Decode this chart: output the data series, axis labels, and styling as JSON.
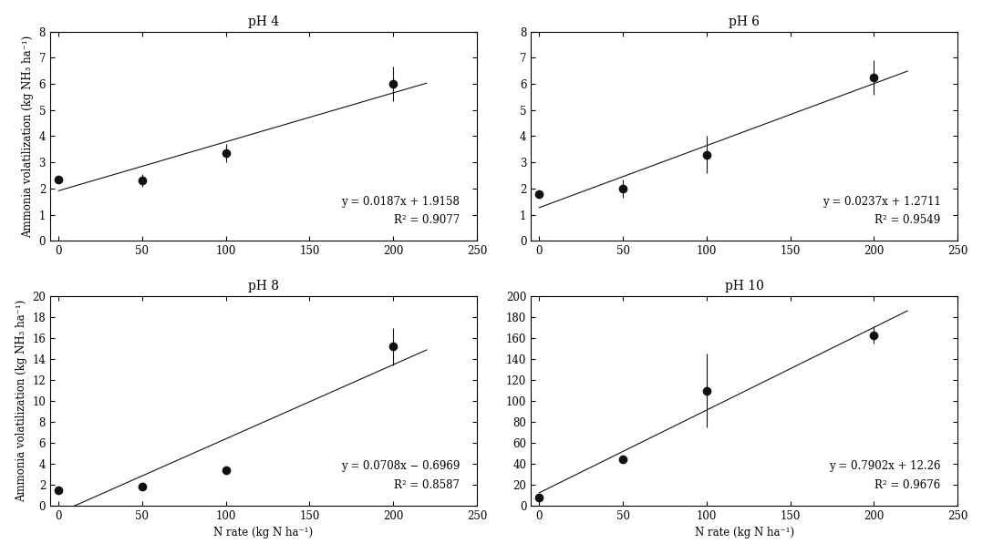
{
  "subplots": [
    {
      "title": "pH 4",
      "x": [
        0,
        50,
        100,
        200
      ],
      "y": [
        2.35,
        2.3,
        3.35,
        6.0
      ],
      "yerr": [
        0.12,
        0.25,
        0.35,
        0.65
      ],
      "slope": 0.0187,
      "intercept": 1.9158,
      "r2": 0.9077,
      "eq_text": "y = 0.0187x + 1.9158",
      "r2_text": "R² = 0.9077",
      "ylabel": "Ammonia volatilization (kg NH₃ ha⁻¹)",
      "xlabel": "",
      "ylim": [
        0,
        8
      ],
      "yticks": [
        0,
        1,
        2,
        3,
        4,
        5,
        6,
        7,
        8
      ],
      "xlim": [
        -5,
        250
      ],
      "xticks": [
        0,
        50,
        100,
        150,
        200,
        250
      ],
      "row": 0,
      "col": 0
    },
    {
      "title": "pH 6",
      "x": [
        0,
        50,
        100,
        200
      ],
      "y": [
        1.8,
        2.0,
        3.3,
        6.25
      ],
      "yerr": [
        0.1,
        0.35,
        0.7,
        0.65
      ],
      "slope": 0.0237,
      "intercept": 1.2711,
      "r2": 0.9549,
      "eq_text": "y = 0.0237x + 1.2711",
      "r2_text": "R² = 0.9549",
      "ylabel": "",
      "xlabel": "",
      "ylim": [
        0,
        8
      ],
      "yticks": [
        0,
        1,
        2,
        3,
        4,
        5,
        6,
        7,
        8
      ],
      "xlim": [
        -5,
        250
      ],
      "xticks": [
        0,
        50,
        100,
        150,
        200,
        250
      ],
      "row": 0,
      "col": 1
    },
    {
      "title": "pH 8",
      "x": [
        0,
        50,
        100,
        200
      ],
      "y": [
        1.5,
        1.8,
        3.4,
        15.2
      ],
      "yerr": [
        0.15,
        0.1,
        0.1,
        1.8
      ],
      "slope": 0.0708,
      "intercept": -0.6969,
      "r2": 0.8587,
      "eq_text": "y = 0.0708x − 0.6969",
      "r2_text": "R² = 0.8587",
      "ylabel": "Ammonia volatilization (kg NH₃ ha⁻¹)",
      "xlabel": "N rate (kg N ha⁻¹)",
      "ylim": [
        0,
        20
      ],
      "yticks": [
        0,
        2,
        4,
        6,
        8,
        10,
        12,
        14,
        16,
        18,
        20
      ],
      "xlim": [
        -5,
        250
      ],
      "xticks": [
        0,
        50,
        100,
        150,
        200,
        250
      ],
      "row": 1,
      "col": 0
    },
    {
      "title": "pH 10",
      "x": [
        0,
        50,
        100,
        200
      ],
      "y": [
        8.0,
        44.0,
        110.0,
        163.0
      ],
      "yerr": [
        1.5,
        3.0,
        35.0,
        8.0
      ],
      "slope": 0.7902,
      "intercept": 12.26,
      "r2": 0.9676,
      "eq_text": "y = 0.7902x + 12.26",
      "r2_text": "R² = 0.9676",
      "ylabel": "",
      "xlabel": "N rate (kg N ha⁻¹)",
      "ylim": [
        0,
        200
      ],
      "yticks": [
        0,
        20,
        40,
        60,
        80,
        100,
        120,
        140,
        160,
        180,
        200
      ],
      "xlim": [
        -5,
        250
      ],
      "xticks": [
        0,
        50,
        100,
        150,
        200,
        250
      ],
      "row": 1,
      "col": 1
    }
  ],
  "figure_bg": "#ffffff",
  "axes_bg": "#ffffff",
  "marker_color": "#111111",
  "line_color": "#111111",
  "marker_size": 7,
  "line_width": 0.8,
  "font_size": 8.5,
  "title_font_size": 10,
  "label_font_size": 8.5
}
